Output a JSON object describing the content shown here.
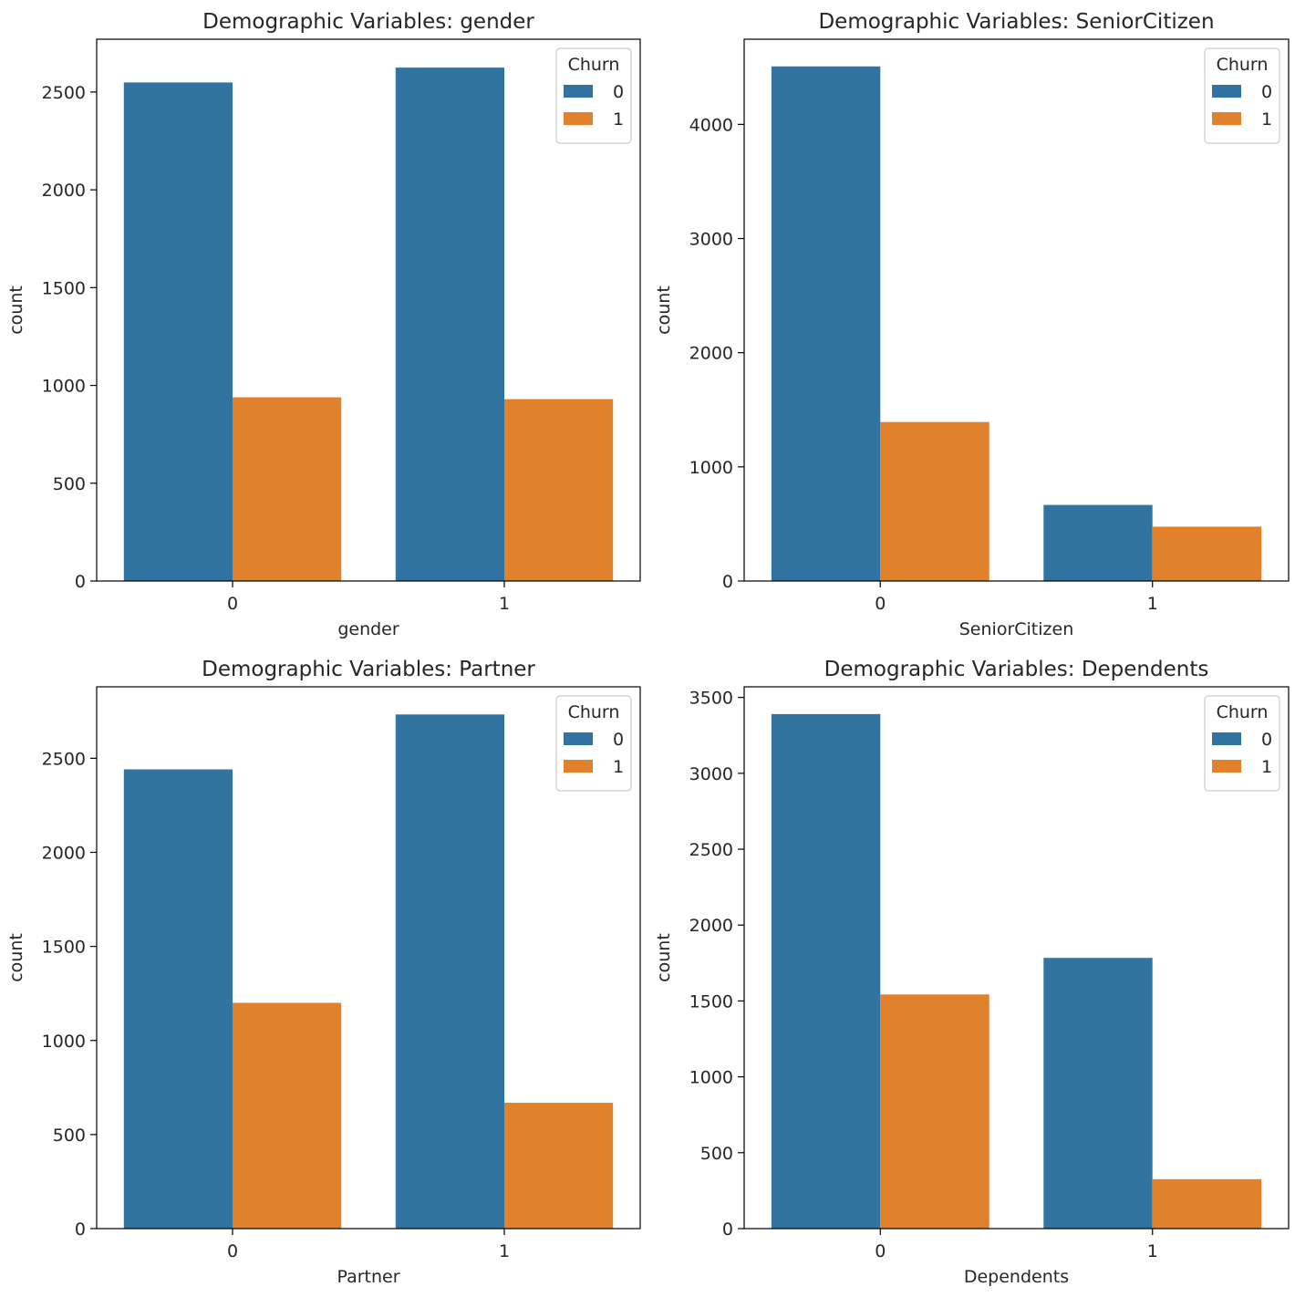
{
  "colors": {
    "churn_0": "#3274a1",
    "churn_1": "#e1812c",
    "axis": "#000000",
    "legend_border": "#cccccc"
  },
  "chart_data": [
    {
      "type": "bar",
      "title": "Demographic Variables: gender",
      "xlabel": "gender",
      "ylabel": "count",
      "categories": [
        "0",
        "1"
      ],
      "ylim": [
        0,
        2770
      ],
      "yticks": [
        0,
        500,
        1000,
        1500,
        2000,
        2500
      ],
      "legend": {
        "title": "Churn",
        "position": "top-right"
      },
      "series": [
        {
          "name": "0",
          "values": [
            2549,
            2625
          ]
        },
        {
          "name": "1",
          "values": [
            939,
            930
          ]
        }
      ]
    },
    {
      "type": "bar",
      "title": "Demographic Variables: SeniorCitizen",
      "xlabel": "SeniorCitizen",
      "ylabel": "count",
      "categories": [
        "0",
        "1"
      ],
      "ylim": [
        0,
        4746
      ],
      "yticks": [
        0,
        1000,
        2000,
        3000,
        4000
      ],
      "legend": {
        "title": "Churn",
        "position": "top-right"
      },
      "series": [
        {
          "name": "0",
          "values": [
            4508,
            666
          ]
        },
        {
          "name": "1",
          "values": [
            1393,
            476
          ]
        }
      ]
    },
    {
      "type": "bar",
      "title": "Demographic Variables: Partner",
      "xlabel": "Partner",
      "ylabel": "count",
      "categories": [
        "0",
        "1"
      ],
      "ylim": [
        0,
        2880
      ],
      "yticks": [
        0,
        500,
        1000,
        1500,
        2000,
        2500
      ],
      "legend": {
        "title": "Churn",
        "position": "top-right"
      },
      "series": [
        {
          "name": "0",
          "values": [
            2441,
            2733
          ]
        },
        {
          "name": "1",
          "values": [
            1200,
            669
          ]
        }
      ]
    },
    {
      "type": "bar",
      "title": "Demographic Variables: Dependents",
      "xlabel": "Dependents",
      "ylabel": "count",
      "categories": [
        "0",
        "1"
      ],
      "ylim": [
        0,
        3570
      ],
      "yticks": [
        0,
        500,
        1000,
        1500,
        2000,
        2500,
        3000,
        3500
      ],
      "legend": {
        "title": "Churn",
        "position": "top-right"
      },
      "series": [
        {
          "name": "0",
          "values": [
            3390,
            1784
          ]
        },
        {
          "name": "1",
          "values": [
            1543,
            326
          ]
        }
      ]
    }
  ]
}
